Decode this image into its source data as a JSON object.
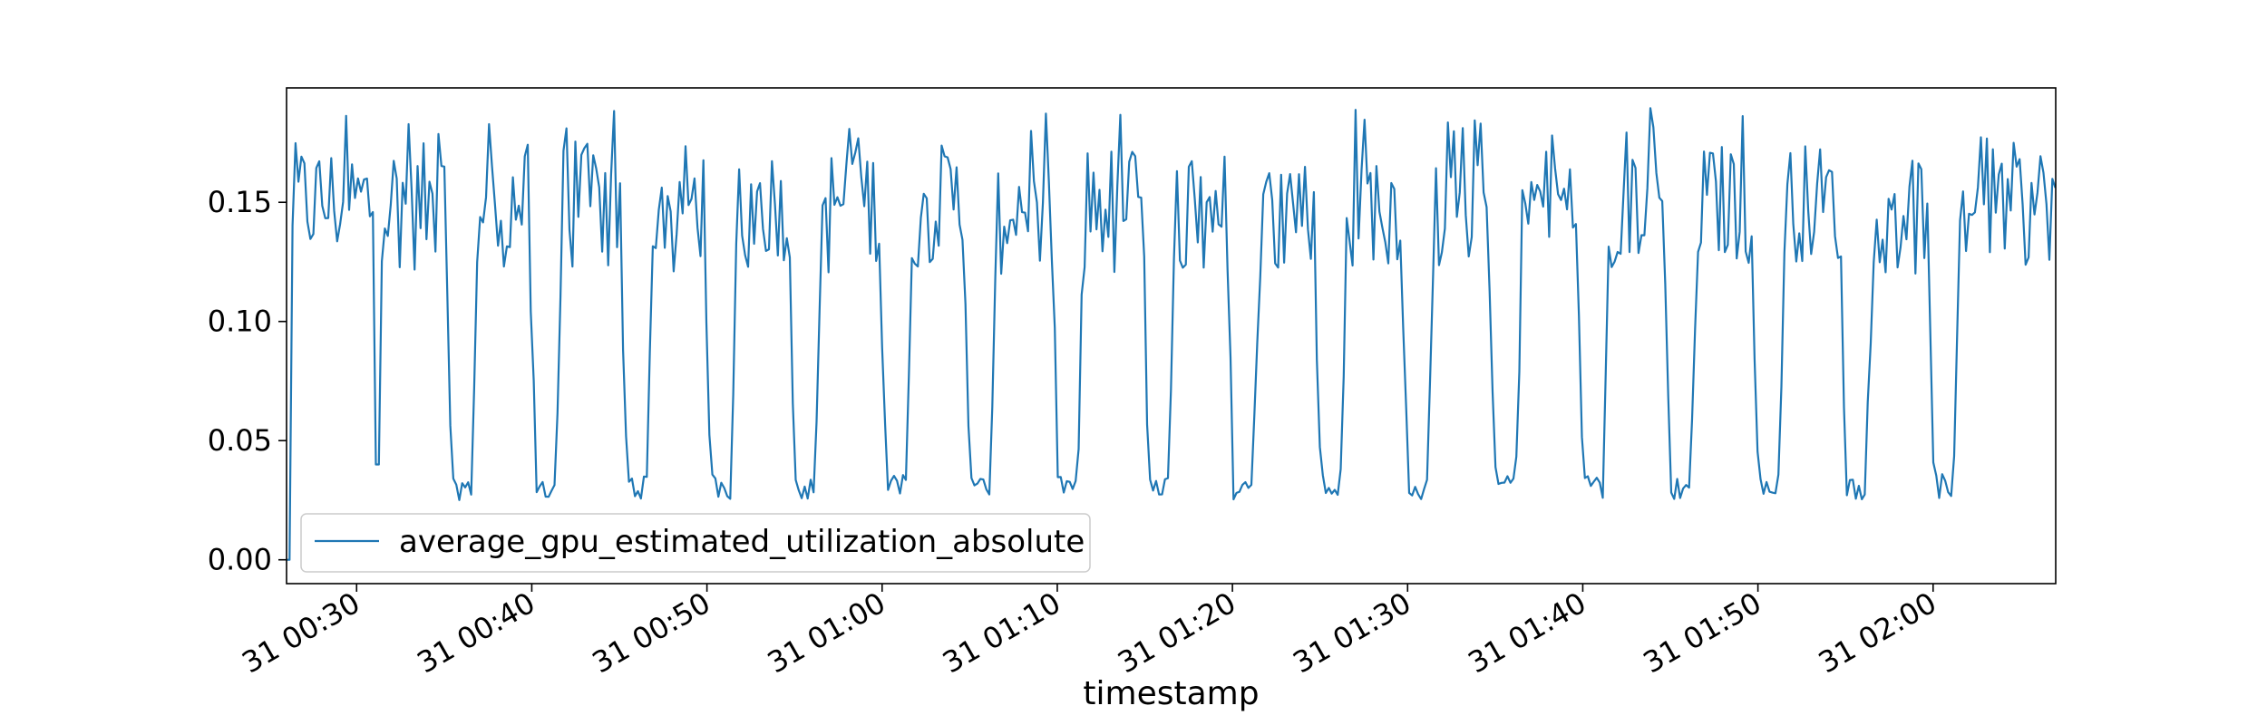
{
  "chart_data": {
    "type": "line",
    "title": "",
    "xlabel": "timestamp",
    "ylabel": "",
    "x_type": "time",
    "time_start": "31 00:25",
    "time_end": "31 02:06",
    "xlim_minutes": [
      0,
      101
    ],
    "ylim": [
      -0.01,
      0.198
    ],
    "yticks": [
      {
        "value": 0.0,
        "label": "0.00"
      },
      {
        "value": 0.05,
        "label": "0.05"
      },
      {
        "value": 0.1,
        "label": "0.10"
      },
      {
        "value": 0.15,
        "label": "0.15"
      }
    ],
    "xticks": [
      {
        "minutes": 4,
        "label": "31 00:30"
      },
      {
        "minutes": 14,
        "label": "31 00:40"
      },
      {
        "minutes": 24,
        "label": "31 00:50"
      },
      {
        "minutes": 34,
        "label": "31 01:00"
      },
      {
        "minutes": 44,
        "label": "31 01:10"
      },
      {
        "minutes": 54,
        "label": "31 01:20"
      },
      {
        "minutes": 64,
        "label": "31 01:30"
      },
      {
        "minutes": 74,
        "label": "31 01:40"
      },
      {
        "minutes": 84,
        "label": "31 01:50"
      },
      {
        "minutes": 94,
        "label": "31 02:00"
      }
    ],
    "grid": false,
    "legend_position": "lower-left",
    "series": [
      {
        "name": "average_gpu_estimated_utilization_absolute",
        "color": "#1f77b4",
        "pattern": {
          "sample_interval_minutes": 0.17,
          "baseline_range": [
            0.125,
            0.175
          ],
          "peak_max": 0.19,
          "low_value_range": [
            0.025,
            0.036
          ],
          "dips_minutes": [
            5.2,
            10.0,
            14.8,
            20.0,
            24.8,
            29.6,
            34.8,
            39.6,
            44.6,
            49.8,
            54.6,
            59.6,
            64.6,
            69.6,
            74.6,
            79.6,
            84.6,
            89.6,
            94.6
          ],
          "shallow_dip": {
            "minutes": 5.2,
            "value": 0.04
          },
          "start_value": 0.0
        }
      }
    ]
  }
}
